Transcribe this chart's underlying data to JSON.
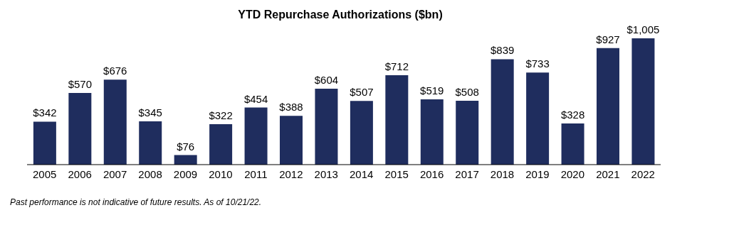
{
  "chart_data": {
    "type": "bar",
    "title": "YTD Repurchase Authorizations ($bn)",
    "categories": [
      "2005",
      "2006",
      "2007",
      "2008",
      "2009",
      "2010",
      "2011",
      "2012",
      "2013",
      "2014",
      "2015",
      "2016",
      "2017",
      "2018",
      "2019",
      "2020",
      "2021",
      "2022"
    ],
    "values": [
      342,
      570,
      676,
      345,
      76,
      322,
      454,
      388,
      604,
      507,
      712,
      519,
      508,
      839,
      733,
      328,
      927,
      1005
    ],
    "value_labels": [
      "$342",
      "$570",
      "$676",
      "$345",
      "$76",
      "$322",
      "$454",
      "$388",
      "$604",
      "$507",
      "$712",
      "$519",
      "$508",
      "$839",
      "$733",
      "$328",
      "$927",
      "$1,005"
    ],
    "color": "#1f2d5e",
    "annotations": [
      "Past performance is not indicative of future results. As of 10/21/22."
    ]
  }
}
